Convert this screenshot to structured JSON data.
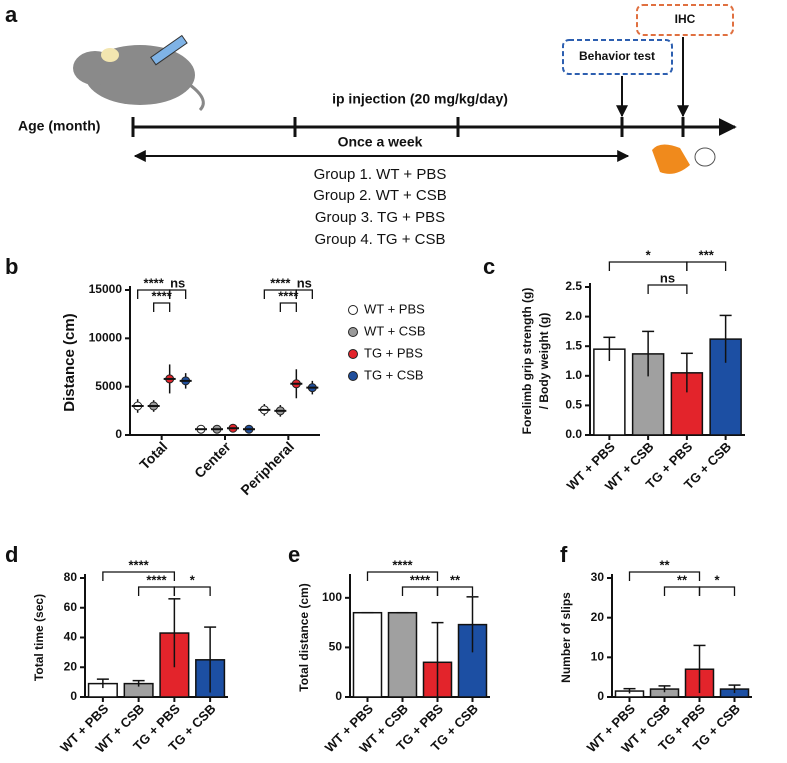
{
  "diagram": {
    "panel": "a",
    "axis_label": "Age (month)",
    "injection": "ip injection (20 mg/kg/day)",
    "frequency": "Once a week",
    "behavior": "Behavior test",
    "ihc": "IHC",
    "groups": [
      "Group 1. WT + PBS",
      "Group 2. WT + CSB",
      "Group 3. TG + PBS",
      "Group 4. TG + CSB"
    ]
  },
  "chart_data": [
    {
      "type": "dot",
      "panel": "b",
      "ylabel": [
        "Distance (cm)"
      ],
      "categories": [
        "Total",
        "Center",
        "Peripheral"
      ],
      "series": [
        {
          "name": "WT + PBS",
          "color": "#ffffff",
          "values": [
            3000,
            600,
            2600
          ],
          "errors": [
            700,
            150,
            600
          ]
        },
        {
          "name": "WT + CSB",
          "color": "#9a9a9a",
          "values": [
            3000,
            600,
            2500
          ],
          "errors": [
            600,
            150,
            600
          ]
        },
        {
          "name": "TG + PBS",
          "color": "#e3242b",
          "values": [
            5800,
            700,
            5300
          ],
          "errors": [
            1500,
            200,
            1500
          ]
        },
        {
          "name": "TG + CSB",
          "color": "#1f4e9c",
          "values": [
            5600,
            600,
            4900
          ],
          "errors": [
            800,
            150,
            700
          ]
        }
      ],
      "ylim": [
        0,
        15000
      ],
      "yticks": [
        0,
        5000,
        10000,
        15000
      ],
      "legend": "right",
      "annotations": [
        {
          "text": "****",
          "category": "Total",
          "between": [
            "WT + PBS",
            "TG + PBS"
          ]
        },
        {
          "text": "****",
          "category": "Total",
          "between": [
            "WT + CSB",
            "TG + PBS"
          ]
        },
        {
          "text": "ns",
          "category": "Total",
          "between": [
            "TG + PBS",
            "TG + CSB"
          ]
        },
        {
          "text": "****",
          "category": "Peripheral",
          "between": [
            "WT + PBS",
            "TG + PBS"
          ]
        },
        {
          "text": "****",
          "category": "Peripheral",
          "between": [
            "WT + CSB",
            "TG + PBS"
          ]
        },
        {
          "text": "ns",
          "category": "Peripheral",
          "between": [
            "TG + PBS",
            "TG + CSB"
          ]
        }
      ]
    },
    {
      "type": "bar",
      "panel": "c",
      "ylabel": [
        "Forelimb grip strength (g)",
        "/ Body weight (g)"
      ],
      "categories": [
        "WT + PBS",
        "WT + CSB",
        "TG + PBS",
        "TG + CSB"
      ],
      "values": [
        1.45,
        1.37,
        1.05,
        1.62
      ],
      "errors": [
        0.2,
        0.38,
        0.33,
        0.4
      ],
      "colors": [
        "#ffffff",
        "#a0a0a0",
        "#e3242b",
        "#1c4fa3"
      ],
      "ylim": [
        0,
        2.5
      ],
      "yticks": [
        {
          "value": 0,
          "label": "0.0"
        },
        0.5,
        {
          "value": 1,
          "label": "1.0"
        },
        1.5,
        {
          "value": 2,
          "label": "2.0"
        },
        2.5
      ],
      "annotations": [
        {
          "text": "*",
          "between": [
            "WT + PBS",
            "TG + PBS"
          ]
        },
        {
          "text": "ns",
          "between": [
            "WT + CSB",
            "TG + PBS"
          ]
        },
        {
          "text": "***",
          "between": [
            "TG + PBS",
            "TG + CSB"
          ]
        }
      ]
    },
    {
      "type": "bar",
      "panel": "d",
      "ylabel": [
        "Total time (sec)"
      ],
      "categories": [
        "WT + PBS",
        "WT + CSB",
        "TG + PBS",
        "TG + CSB"
      ],
      "values": [
        9,
        9,
        43,
        25
      ],
      "errors": [
        3,
        2,
        23,
        22
      ],
      "colors": [
        "#ffffff",
        "#a0a0a0",
        "#e3242b",
        "#1c4fa3"
      ],
      "ylim": [
        0,
        80
      ],
      "yticks": [
        0,
        20,
        40,
        60,
        80
      ],
      "annotations": [
        {
          "text": "****",
          "between": [
            "WT + PBS",
            "TG + PBS"
          ]
        },
        {
          "text": "****",
          "between": [
            "WT + CSB",
            "TG + PBS"
          ]
        },
        {
          "text": "*",
          "between": [
            "TG + PBS",
            "TG + CSB"
          ]
        }
      ]
    },
    {
      "type": "bar",
      "panel": "e",
      "ylabel": [
        "Total distance (cm)"
      ],
      "categories": [
        "WT + PBS",
        "WT + CSB",
        "TG + PBS",
        "TG + CSB"
      ],
      "values": [
        85,
        85,
        35,
        73
      ],
      "errors": [
        0,
        0,
        40,
        28
      ],
      "colors": [
        "#ffffff",
        "#a0a0a0",
        "#e3242b",
        "#1c4fa3"
      ],
      "ylim": [
        0,
        120
      ],
      "yticks": [
        0,
        50,
        100
      ],
      "annotations": [
        {
          "text": "****",
          "between": [
            "WT + PBS",
            "TG + PBS"
          ]
        },
        {
          "text": "****",
          "between": [
            "WT + CSB",
            "TG + PBS"
          ]
        },
        {
          "text": "**",
          "between": [
            "TG + PBS",
            "TG + CSB"
          ]
        }
      ]
    },
    {
      "type": "bar",
      "panel": "f",
      "ylabel": [
        "Number of slips"
      ],
      "categories": [
        "WT + PBS",
        "WT + CSB",
        "TG + PBS",
        "TG + CSB"
      ],
      "values": [
        1.5,
        2,
        7,
        2
      ],
      "errors": [
        0.6,
        0.8,
        6,
        1
      ],
      "colors": [
        "#ffffff",
        "#a0a0a0",
        "#e3242b",
        "#1c4fa3"
      ],
      "ylim": [
        0,
        30
      ],
      "yticks": [
        0,
        10,
        20,
        30
      ],
      "annotations": [
        {
          "text": "**",
          "between": [
            "WT + PBS",
            "TG + PBS"
          ]
        },
        {
          "text": "**",
          "between": [
            "WT + CSB",
            "TG + PBS"
          ]
        },
        {
          "text": "*",
          "between": [
            "TG + PBS",
            "TG + CSB"
          ]
        }
      ]
    }
  ]
}
